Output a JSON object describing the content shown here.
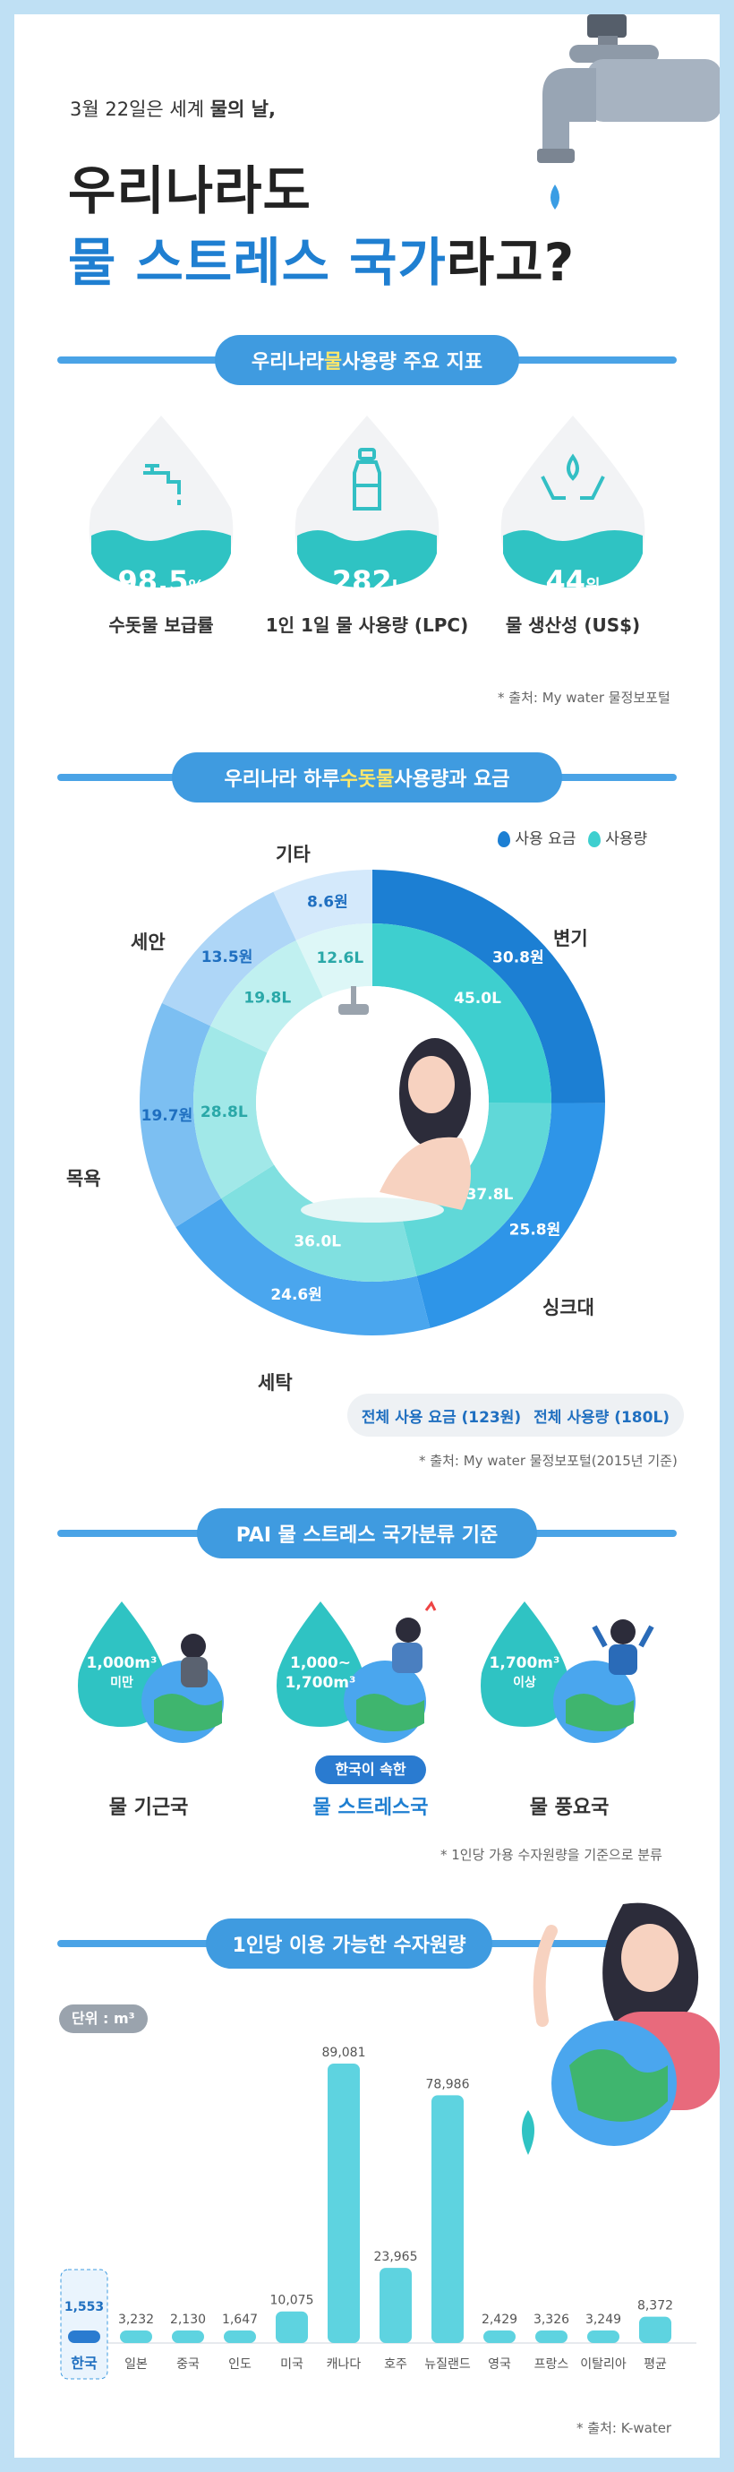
{
  "header": {
    "intro": "3월 22일은 세계",
    "intro_strong": "물의 날,",
    "title_line1": "우리나라도",
    "title_line2_a": "물 스트레스 국가",
    "title_line2_b": "라고?"
  },
  "section1": {
    "title_a": "우리나라 ",
    "title_hl": "물",
    "title_b": " 사용량 주요 지표",
    "cards": [
      {
        "value": "98.5",
        "unit": "%",
        "caption": "수돗물 보급률",
        "icon": "faucet-icon"
      },
      {
        "value": "282",
        "unit": "L",
        "caption": "1인 1일 물 사용량 (LPC)",
        "icon": "bottle-icon"
      },
      {
        "value": "44",
        "unit": "위",
        "caption": "물 생산성 (US$)",
        "icon": "hands-water-icon"
      }
    ],
    "source": "* 출처: My water 물정보포털"
  },
  "section2": {
    "title_a": "우리나라 하루 ",
    "title_hl": "수돗물",
    "title_b": " 사용량과 요금",
    "legend": {
      "cost": "사용 요금",
      "usage": "사용량"
    },
    "categories": [
      {
        "name": "변기",
        "cost": "30.8원",
        "usage": "45.0L"
      },
      {
        "name": "싱크대",
        "cost": "25.8원",
        "usage": "37.8L"
      },
      {
        "name": "세탁",
        "cost": "24.6원",
        "usage": "36.0L"
      },
      {
        "name": "목욕",
        "cost": "19.7원",
        "usage": "28.8L"
      },
      {
        "name": "세안",
        "cost": "13.5원",
        "usage": "19.8L"
      },
      {
        "name": "기타",
        "cost": "8.6원",
        "usage": "12.6L"
      }
    ],
    "total_cost": "전체 사용 요금 (123원)",
    "total_usage": "전체 사용량 (180L)",
    "source": "* 출처: My water 물정보포털(2015년 기준)",
    "colors": {
      "outer": [
        "#1c7fd3",
        "#2e95e8",
        "#4aa6ee",
        "#7cbff2",
        "#aed6f7",
        "#d4e9fb"
      ],
      "inner": [
        "#3ecfcf",
        "#60d8d8",
        "#80e0e0",
        "#a1e8e8",
        "#c0f0f0",
        "#ddf7f7"
      ]
    }
  },
  "section3": {
    "title": "PAI 물 스트레스 국가분류 기준",
    "classes": [
      {
        "range_line1": "1,000m³",
        "range_line2": "미만",
        "caption": "물 기근국"
      },
      {
        "range_line1": "1,000~",
        "range_line2": "1,700m³",
        "caption": "물 스트레스국",
        "badge": "한국이 속한"
      },
      {
        "range_line1": "1,700m³",
        "range_line2": "이상",
        "caption": "물 풍요국"
      }
    ],
    "note": "* 1인당 가용 수자원량을 기준으로 분류"
  },
  "section4": {
    "title": "1인당 이용 가능한 수자원량",
    "unit_badge": "단위 : m³",
    "source": "* 출처: K-water"
  },
  "chart_data": {
    "type": "bar",
    "categories": [
      "한국",
      "일본",
      "중국",
      "인도",
      "미국",
      "캐나다",
      "호주",
      "뉴질랜드",
      "영국",
      "프랑스",
      "이탈리아",
      "평균"
    ],
    "values": [
      1553,
      3232,
      2130,
      1647,
      10075,
      89081,
      23965,
      78986,
      2429,
      3326,
      3249,
      8372
    ],
    "labels": [
      "1,553",
      "3,232",
      "2,130",
      "1,647",
      "10,075",
      "89,081",
      "23,965",
      "78,986",
      "2,429",
      "3,326",
      "3,249",
      "8,372"
    ]
  }
}
